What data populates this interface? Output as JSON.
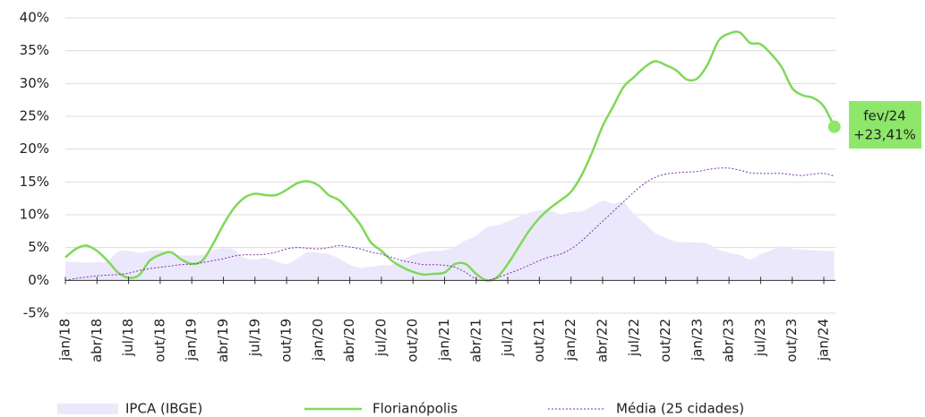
{
  "chart_data": {
    "type": "line",
    "categories": [
      "jan/18",
      null,
      null,
      "abr/18",
      null,
      null,
      "jul/18",
      null,
      null,
      "out/18",
      null,
      null,
      "jan/19",
      null,
      null,
      "abr/19",
      null,
      null,
      "jul/19",
      null,
      null,
      "out/19",
      null,
      null,
      "jan/20",
      null,
      null,
      "abr/20",
      null,
      null,
      "jul/20",
      null,
      null,
      "out/20",
      null,
      null,
      "jan/21",
      null,
      null,
      "abr/21",
      null,
      null,
      "jul/21",
      null,
      null,
      "out/21",
      null,
      null,
      "jan/22",
      null,
      null,
      "abr/22",
      null,
      null,
      "jul/22",
      null,
      null,
      "out/22",
      null,
      null,
      "jan/23",
      null,
      null,
      "abr/23",
      null,
      null,
      "jul/23",
      null,
      null,
      "out/23",
      null,
      null,
      "jan/24",
      null
    ],
    "series": [
      {
        "name": "IPCA (IBGE)",
        "color": "#ece8fb",
        "style": "area",
        "values": [
          2.9,
          2.8,
          2.7,
          2.8,
          2.9,
          4.4,
          4.5,
          4.2,
          4.5,
          4.6,
          4.1,
          3.8,
          3.8,
          3.9,
          4.6,
          4.9,
          4.7,
          3.4,
          3.2,
          3.4,
          2.9,
          2.5,
          3.3,
          4.3,
          4.2,
          4.0,
          3.3,
          2.4,
          1.9,
          2.1,
          2.3,
          2.4,
          3.1,
          3.9,
          4.3,
          4.5,
          4.6,
          5.2,
          6.1,
          6.8,
          8.1,
          8.4,
          9.0,
          9.7,
          10.3,
          10.7,
          10.7,
          10.1,
          10.4,
          10.5,
          11.3,
          12.1,
          11.7,
          11.9,
          10.1,
          8.7,
          7.2,
          6.5,
          5.9,
          5.8,
          5.8,
          5.6,
          4.7,
          4.2,
          3.9,
          3.2,
          4.0,
          4.6,
          5.2,
          4.8,
          4.7,
          4.6,
          4.5,
          4.5
        ]
      },
      {
        "name": "Florianópolis",
        "color": "#7ed957",
        "style": "solid",
        "values": [
          3.5,
          4.8,
          5.3,
          4.5,
          3.0,
          1.2,
          0.4,
          0.8,
          3.0,
          3.9,
          4.3,
          3.2,
          2.5,
          3.0,
          5.5,
          8.5,
          11.0,
          12.6,
          13.2,
          13.0,
          13.0,
          13.8,
          14.8,
          15.1,
          14.5,
          13.0,
          12.2,
          10.5,
          8.5,
          5.8,
          4.5,
          3.0,
          2.0,
          1.3,
          0.9,
          1.0,
          1.2,
          2.5,
          2.5,
          1.0,
          0.0,
          0.5,
          2.5,
          5.0,
          7.5,
          9.5,
          11.0,
          12.2,
          13.5,
          16.0,
          19.5,
          23.5,
          26.5,
          29.5,
          31.0,
          32.5,
          33.4,
          32.8,
          32.0,
          30.6,
          30.8,
          33.0,
          36.5,
          37.6,
          37.8,
          36.2,
          36.0,
          34.5,
          32.5,
          29.3,
          28.2,
          27.8,
          26.5,
          23.41
        ]
      },
      {
        "name": "Média (25 cidades)",
        "color": "#7a2fa8",
        "style": "dotted",
        "values": [
          0,
          0.3,
          0.5,
          0.7,
          0.8,
          0.9,
          1.1,
          1.5,
          1.8,
          2.0,
          2.2,
          2.4,
          2.5,
          2.7,
          3.0,
          3.3,
          3.7,
          3.9,
          3.9,
          4.0,
          4.3,
          4.8,
          5.0,
          4.9,
          4.8,
          5.0,
          5.3,
          5.1,
          4.8,
          4.3,
          4.0,
          3.5,
          3.0,
          2.7,
          2.4,
          2.4,
          2.3,
          2.0,
          1.2,
          0.2,
          0,
          0.4,
          1.0,
          1.6,
          2.3,
          3.0,
          3.6,
          4.0,
          4.8,
          6.0,
          7.5,
          9.0,
          10.5,
          12.0,
          13.5,
          14.8,
          15.7,
          16.2,
          16.4,
          16.5,
          16.6,
          16.9,
          17.1,
          17.1,
          16.8,
          16.4,
          16.3,
          16.3,
          16.3,
          16.1,
          16.0,
          16.2,
          16.3,
          15.9
        ]
      }
    ],
    "annotation": {
      "date": "fev/24",
      "value": "+23,41%",
      "color": "#8ee66a"
    },
    "ylim": [
      -5,
      40
    ],
    "yticks": [
      {
        "value": -5,
        "label": "-5%"
      },
      {
        "value": 0,
        "label": "0%"
      },
      {
        "value": 5,
        "label": "5%"
      },
      {
        "value": 10,
        "label": "10%"
      },
      {
        "value": 15,
        "label": "15%"
      },
      {
        "value": 20,
        "label": "20%"
      },
      {
        "value": 25,
        "label": "25%"
      },
      {
        "value": 30,
        "label": "30%"
      },
      {
        "value": 35,
        "label": "35%"
      },
      {
        "value": 40,
        "label": "40%"
      }
    ],
    "grid": true
  }
}
